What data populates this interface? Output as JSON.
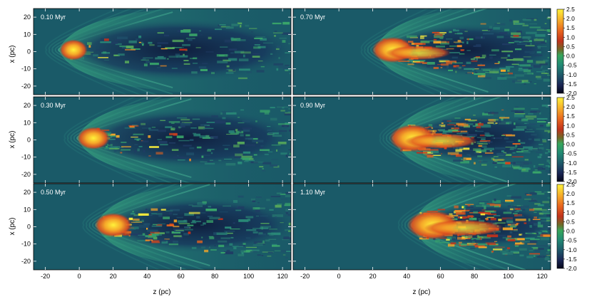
{
  "figure": {
    "ylabel": "x (pc)",
    "xlabel": "z (pc)",
    "x_ticks": [
      "-20",
      "0",
      "20",
      "40",
      "60",
      "80",
      "100",
      "120"
    ],
    "y_ticks": [
      "20",
      "10",
      "0",
      "-10",
      "-20"
    ],
    "colorbar_ticks": [
      "2.5",
      "2.0",
      "1.5",
      "1.0",
      "0.5",
      "0.0",
      "-0.5",
      "-1.0",
      "-1.5",
      "-2.0"
    ]
  },
  "chart_data": {
    "type": "heatmap",
    "panels": [
      {
        "label": "0.10 Myr",
        "time_myr": 0.1
      },
      {
        "label": "0.70 Myr",
        "time_myr": 0.7
      },
      {
        "label": "0.30 Myr",
        "time_myr": 0.3
      },
      {
        "label": "0.90 Myr",
        "time_myr": 0.9
      },
      {
        "label": "0.50 Myr",
        "time_myr": 0.5
      },
      {
        "label": "1.10 Myr",
        "time_myr": 1.1
      }
    ],
    "xlabel": "z (pc)",
    "ylabel": "x (pc)",
    "xlim": [
      -27,
      125
    ],
    "ylim": [
      -25,
      25
    ],
    "colorbar_range": [
      -2.0,
      2.5
    ],
    "colormap": [
      "#0a0c22",
      "#1f2f58",
      "#1f5a6a",
      "#2a8a6f",
      "#3aa85c",
      "#6c6a2a",
      "#b83a1e",
      "#e8641e",
      "#f5a829",
      "#fff23a"
    ],
    "background_color": "#1a5a68"
  }
}
